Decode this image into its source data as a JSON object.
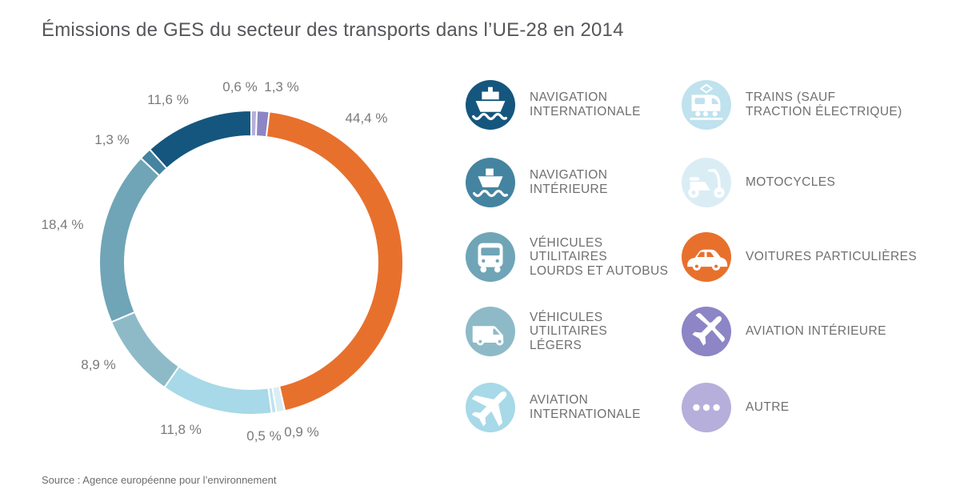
{
  "page": {
    "title": "Émissions de GES du secteur des transports dans l’UE-28 en 2014",
    "source": "Source : Agence européenne pour l’environnement",
    "background_color": "#ffffff",
    "accent_color": "#e8702d"
  },
  "chart_data": {
    "type": "pie",
    "subtype": "donut",
    "title": "Émissions de GES du secteur des transports dans l’UE-28 en 2014",
    "unit": "%",
    "start_angle": "12-oclock",
    "direction": "clockwise",
    "legend_position": "right",
    "slices": [
      {
        "id": "autre",
        "label": "Autre",
        "value": 0.6,
        "pct_label": "0,6 %",
        "color": "#b6afdb"
      },
      {
        "id": "aviation-interieure",
        "label": "Aviation intérieure",
        "value": 1.3,
        "pct_label": "1,3 %",
        "color": "#8c85c6"
      },
      {
        "id": "voitures-particulieres",
        "label": "Voitures particulières",
        "value": 44.4,
        "pct_label": "44,4 %",
        "color": "#e8702d"
      },
      {
        "id": "motocycles",
        "label": "Motocycles",
        "value": 0.9,
        "pct_label": "0,9 %",
        "color": "#daedf5"
      },
      {
        "id": "trains",
        "label": "Trains (sauf traction électrique)",
        "value": 0.5,
        "pct_label": "0,5 %",
        "color": "#bfe2ee"
      },
      {
        "id": "aviation-internationale",
        "label": "Aviation internationale",
        "value": 11.8,
        "pct_label": "11,8 %",
        "color": "#a7d9e8"
      },
      {
        "id": "vehicules-utilitaires-legers",
        "label": "Véhicules utilitaires légers",
        "value": 8.9,
        "pct_label": "8,9 %",
        "color": "#8ebac8"
      },
      {
        "id": "vehicules-utilitaires-lourds-et-autobus",
        "label": "Véhicules utilitaires lourds et autobus",
        "value": 18.4,
        "pct_label": "18,4 %",
        "color": "#6fa5b7"
      },
      {
        "id": "navigation-interieure",
        "label": "Navigation intérieure",
        "value": 1.3,
        "pct_label": "1,3 %",
        "color": "#4484a0"
      },
      {
        "id": "navigation-internationale",
        "label": "Navigation internationale",
        "value": 11.6,
        "pct_label": "11,6 %",
        "color": "#15567e"
      }
    ]
  },
  "legend": {
    "columns": [
      {
        "items": [
          {
            "label": "NAVIGATION\nINTERNATIONALE",
            "icon": "ship-icon",
            "color": "#15567e"
          },
          {
            "label": "NAVIGATION\nINTÉRIEURE",
            "icon": "boat-icon",
            "color": "#4484a0"
          },
          {
            "label": "VÉHICULES\nUTILITAIRES\nLOURDS ET AUTOBUS",
            "icon": "bus-icon",
            "color": "#6fa5b7"
          },
          {
            "label": "VÉHICULES\nUTILITAIRES\nLÉGERS",
            "icon": "van-icon",
            "color": "#8ebac8"
          },
          {
            "label": "AVIATION\nINTERNATIONALE",
            "icon": "plane-icon",
            "color": "#a7d9e8"
          }
        ]
      },
      {
        "items": [
          {
            "label": "TRAINS (SAUF\nTRACTION ÉLECTRIQUE)",
            "icon": "train-icon",
            "color": "#bfe2ee"
          },
          {
            "label": "MOTOCYCLES",
            "icon": "scooter-icon",
            "color": "#daedf5"
          },
          {
            "label": "VOITURES PARTICULIÈRES",
            "icon": "car-icon",
            "color": "#e8702d"
          },
          {
            "label": "AVIATION INTÉRIEURE",
            "icon": "small-plane-icon",
            "color": "#8c85c6"
          },
          {
            "label": "AUTRE",
            "icon": "dots-icon",
            "color": "#b6afdb"
          }
        ]
      }
    ]
  }
}
